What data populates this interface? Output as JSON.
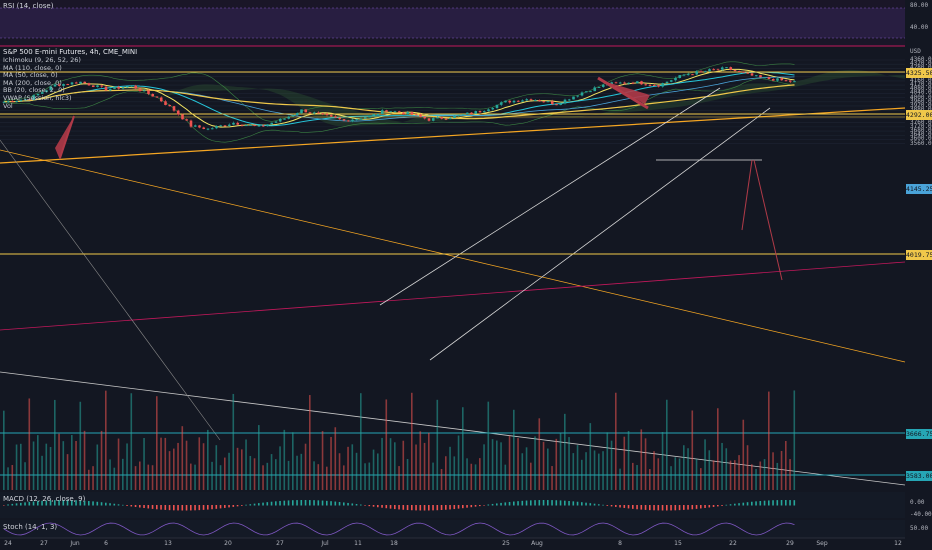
{
  "chart": {
    "symbol_line": "S&P 500 E-mini Futures, 4h, CME_MINI",
    "indicators": [
      "Ichimoku (9, 26, 52, 26)",
      "MA (110, close, 0)",
      "MA (50, close, 0)",
      "MA (200, close, 0)",
      "BB (20, close, 2, 0)",
      "VWAP (Session, hlc3)",
      "Vol"
    ],
    "currency": "USD"
  },
  "panes": {
    "rsi": {
      "label": "RSI (14, close)",
      "axis": [
        "80.00",
        "40.00"
      ]
    },
    "macd": {
      "label": "MACD (12, 26, close, 9)",
      "axis": [
        "0.00",
        "-40.00"
      ]
    },
    "stoch": {
      "label": "Stoch (14, 1, 3)",
      "axis": [
        "50.00"
      ]
    }
  },
  "price_axis": [
    "4360.00",
    "4320.00",
    "4280.00",
    "4240.00",
    "4200.00",
    "4160.00",
    "4120.00",
    "4080.00",
    "4040.00",
    "4000.00",
    "3960.00",
    "3920.00",
    "3880.00",
    "3840.00",
    "3800.00",
    "3760.00",
    "3720.00",
    "3680.00",
    "3640.00",
    "3600.00",
    "3560.00"
  ],
  "price_tags": [
    {
      "text": "4325.50",
      "color": "#f0c84a"
    },
    {
      "text": "4292.00",
      "color": "#f0c84a"
    },
    {
      "text": "4145.25",
      "color": "#4aa3d8"
    },
    {
      "text": "4019.75",
      "color": "#f0c84a"
    },
    {
      "text": "3666.75",
      "color": "#26a6b5"
    },
    {
      "text": "3583.00",
      "color": "#26a6b5"
    }
  ],
  "time_axis": [
    "24",
    "27",
    "Jun",
    "6",
    "13",
    "20",
    "27",
    "Jul",
    "11",
    "18",
    "25",
    "Aug",
    "8",
    "15",
    "22",
    "29",
    "Sep",
    "12"
  ],
  "colors": {
    "background": "#131722",
    "up": "#26a69a",
    "down": "#ef5350",
    "ma_yellow": "#f0c84a",
    "orange_line": "#f5a623",
    "cyan": "#26c6da",
    "arrow": "#b03a48"
  }
}
